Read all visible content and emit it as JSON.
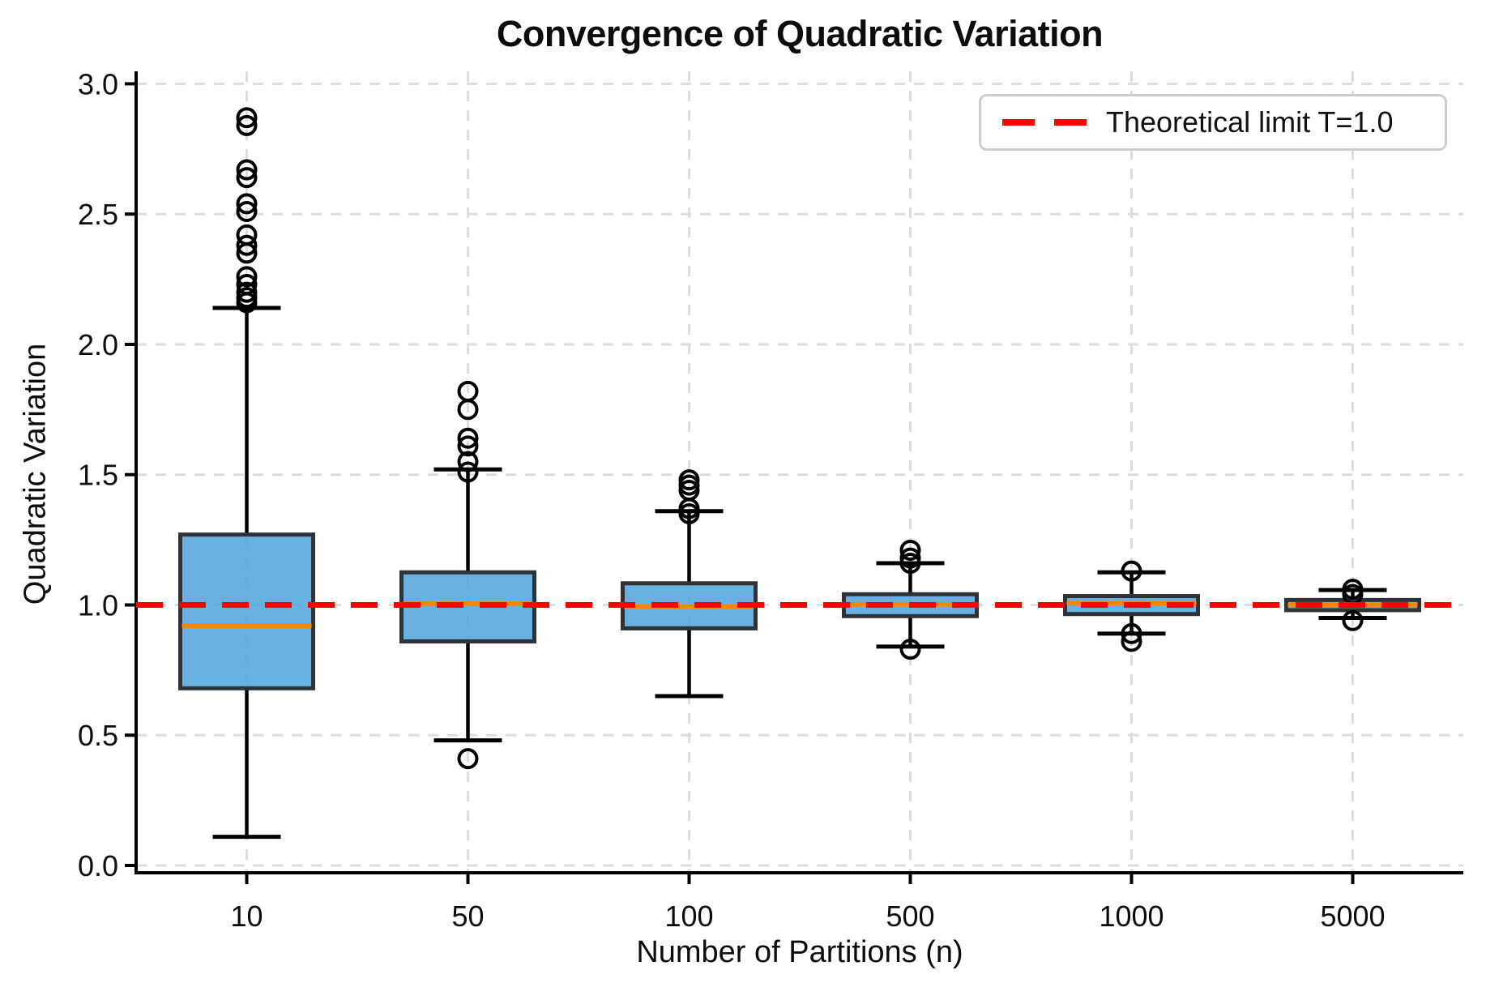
{
  "chart_data": {
    "type": "boxplot",
    "title": "Convergence of Quadratic Variation",
    "xlabel": "Number of Partitions (n)",
    "ylabel": "Quadratic Variation",
    "categories": [
      "10",
      "50",
      "100",
      "500",
      "1000",
      "5000"
    ],
    "yticks": [
      0.0,
      0.5,
      1.0,
      1.5,
      2.0,
      2.5,
      3.0
    ],
    "ytick_labels": [
      "0.0",
      "0.5",
      "1.0",
      "1.5",
      "2.0",
      "2.5",
      "3.0"
    ],
    "ylim": [
      0.0,
      3.0
    ],
    "grid": true,
    "legend": {
      "label": "Theoretical limit T=1.0",
      "position": "upper right"
    },
    "reference_line": {
      "value": 1.0,
      "style": "dashed",
      "color": "#ff0000"
    },
    "boxes": [
      {
        "category": "10",
        "whisker_low": 0.11,
        "q1": 0.68,
        "median": 0.92,
        "q3": 1.27,
        "whisker_high": 2.14,
        "outliers_high": [
          2.87,
          2.84,
          2.67,
          2.64,
          2.54,
          2.51,
          2.42,
          2.38,
          2.35,
          2.26,
          2.23,
          2.2,
          2.18,
          2.16
        ],
        "outliers_low": []
      },
      {
        "category": "50",
        "whisker_low": 0.48,
        "q1": 0.86,
        "median": 1.005,
        "q3": 1.125,
        "whisker_high": 1.52,
        "outliers_high": [
          1.82,
          1.75,
          1.64,
          1.61,
          1.55,
          1.51
        ],
        "outliers_low": [
          0.41
        ]
      },
      {
        "category": "100",
        "whisker_low": 0.65,
        "q1": 0.91,
        "median": 0.993,
        "q3": 1.083,
        "whisker_high": 1.36,
        "outliers_high": [
          1.48,
          1.46,
          1.44,
          1.37,
          1.35
        ],
        "outliers_low": []
      },
      {
        "category": "500",
        "whisker_low": 0.84,
        "q1": 0.957,
        "median": 1.002,
        "q3": 1.041,
        "whisker_high": 1.16,
        "outliers_high": [
          1.21,
          1.18,
          1.16
        ],
        "outliers_low": [
          0.83
        ]
      },
      {
        "category": "1000",
        "whisker_low": 0.89,
        "q1": 0.965,
        "median": 1.007,
        "q3": 1.034,
        "whisker_high": 1.125,
        "outliers_high": [
          1.13
        ],
        "outliers_low": [
          0.89,
          0.86
        ]
      },
      {
        "category": "5000",
        "whisker_low": 0.95,
        "q1": 0.98,
        "median": 1.0,
        "q3": 1.019,
        "whisker_high": 1.057,
        "outliers_high": [
          1.06,
          1.04
        ],
        "outliers_low": [
          0.94
        ]
      }
    ],
    "colors": {
      "box_fill": "#4FA3DC",
      "box_edge": "#2E3338",
      "whisker": "#000000",
      "median": "#FF8400",
      "reference": "#FF0000",
      "grid": "#DDDDDD",
      "spine": "#000000",
      "text": "#0D0D0D"
    }
  }
}
